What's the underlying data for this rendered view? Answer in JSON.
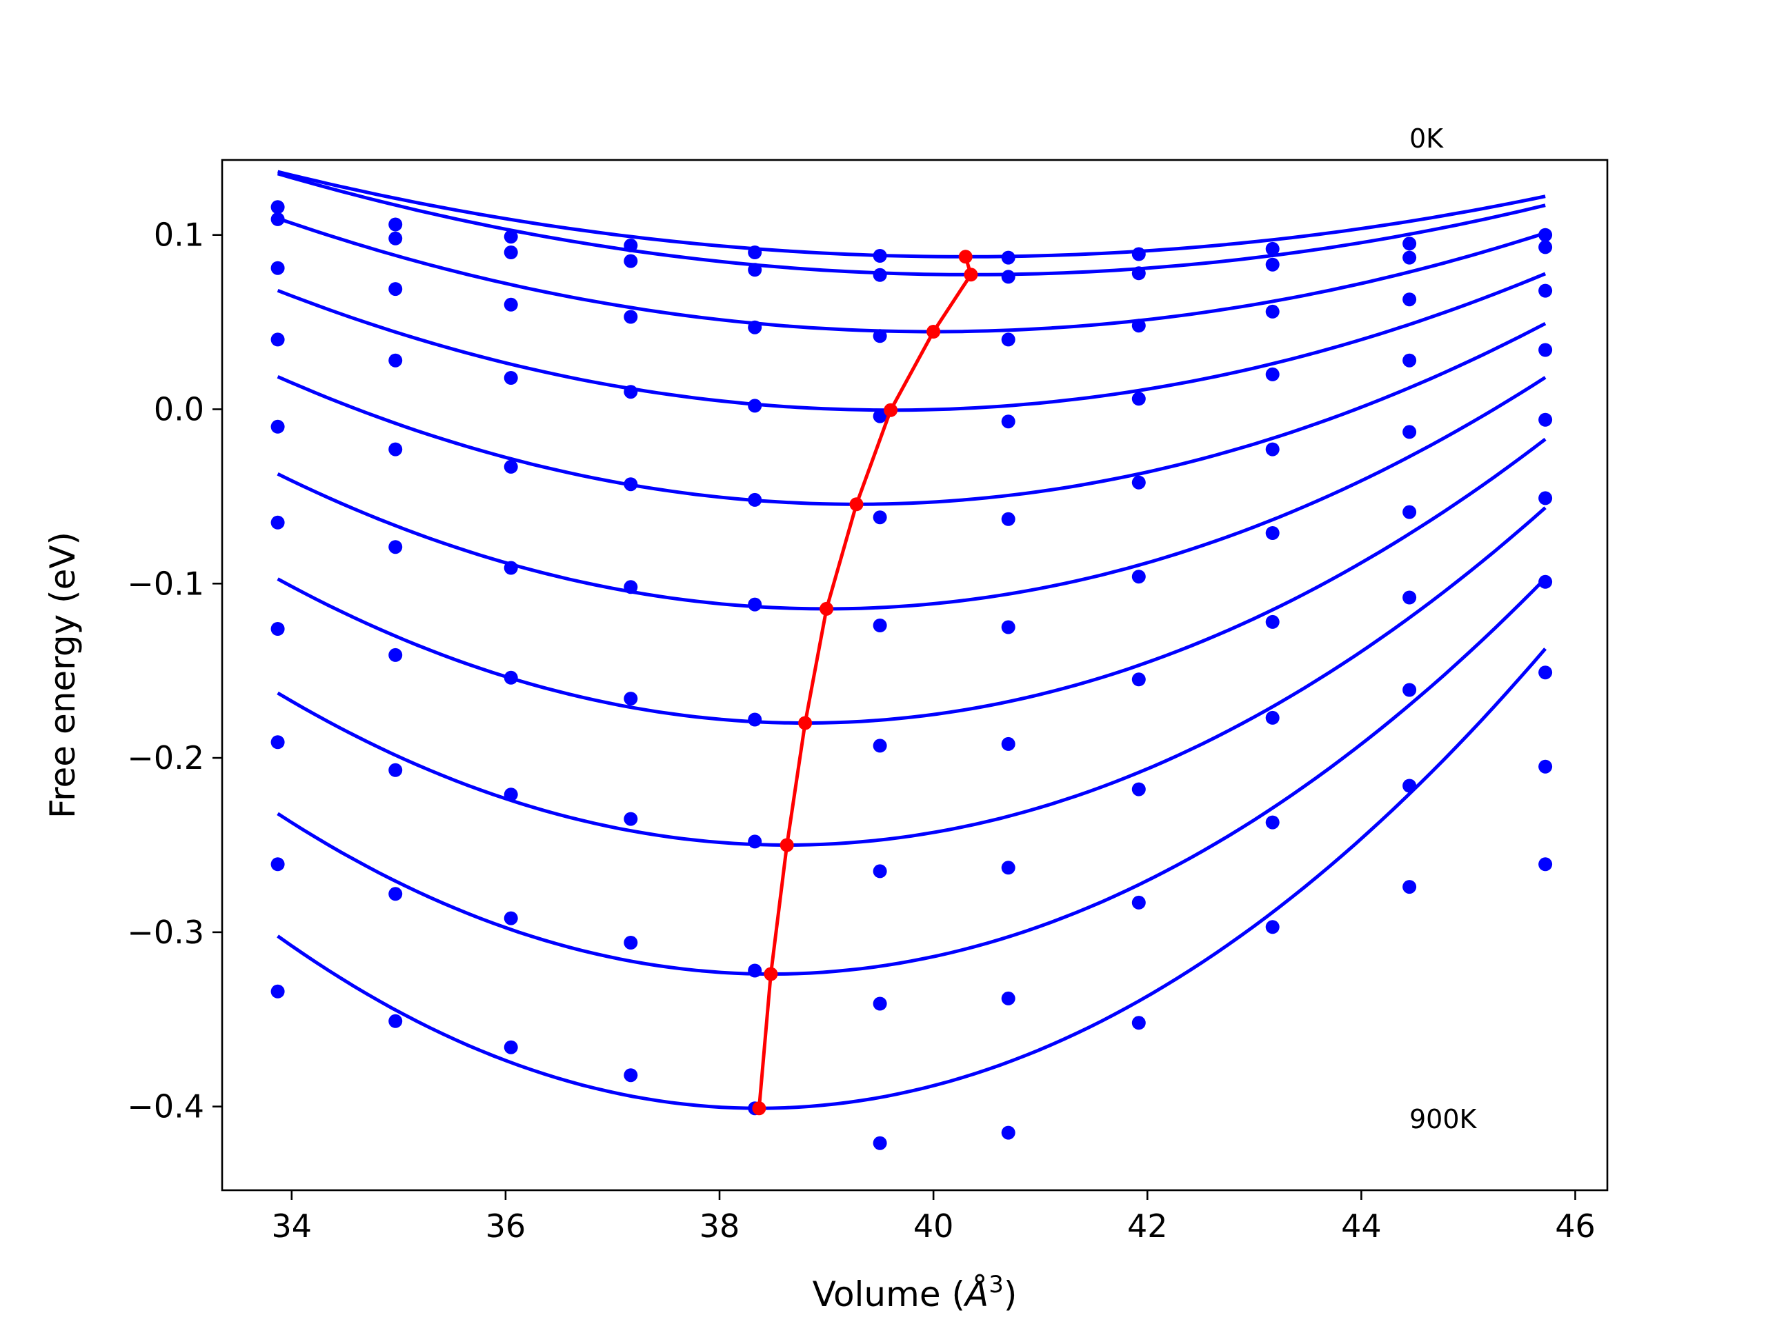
{
  "chart_data": {
    "type": "scatter",
    "xlabel": "Volume",
    "xlabel_unit_symbol": "Å",
    "xlabel_unit_exponent": "3",
    "ylabel": "Free energy (eV)",
    "xlim": [
      33.35,
      46.3
    ],
    "ylim": [
      -0.448,
      0.143
    ],
    "x_ticks": [
      34,
      36,
      38,
      40,
      42,
      44,
      46
    ],
    "x_tick_labels": [
      "34",
      "36",
      "38",
      "40",
      "42",
      "44",
      "46"
    ],
    "y_ticks": [
      0.1,
      0.0,
      -0.1,
      -0.2,
      -0.3,
      -0.4
    ],
    "y_tick_labels": [
      "0.1",
      "0.0",
      "−0.1",
      "−0.2",
      "−0.3",
      "−0.4"
    ],
    "grid": false,
    "legend": "none",
    "annotations": [
      {
        "text": "0K",
        "x": 44.45,
        "y": 0.155
      },
      {
        "text": "900K",
        "x": 44.45,
        "y": -0.415
      }
    ],
    "colors": {
      "data": "#0000ff",
      "minimum_path": "#ff0000",
      "axes": "#000000"
    },
    "x": [
      33.87,
      34.97,
      36.05,
      37.17,
      38.33,
      39.5,
      40.7,
      41.92,
      43.17,
      44.45,
      45.72
    ],
    "series": [
      {
        "points": [
          0.116,
          0.106,
          0.099,
          0.094,
          0.09,
          0.088,
          0.087,
          0.089,
          0.092,
          0.095,
          0.1
        ],
        "fit": {
          "a": 0.00118,
          "vmin": 40.3,
          "fmin": 0.0875
        }
      },
      {
        "points": [
          0.109,
          0.098,
          0.09,
          0.085,
          0.08,
          0.077,
          0.076,
          0.078,
          0.083,
          0.087,
          0.093
        ],
        "fit": {
          "a": 0.00138,
          "vmin": 40.35,
          "fmin": 0.0772
        }
      },
      {
        "points": [
          0.081,
          0.069,
          0.06,
          0.053,
          0.047,
          0.042,
          0.04,
          0.048,
          0.056,
          0.063,
          0.068
        ],
        "fit": {
          "a": 0.00173,
          "vmin": 40.0,
          "fmin": 0.0445
        }
      },
      {
        "points": [
          0.04,
          0.028,
          0.018,
          0.01,
          0.002,
          -0.004,
          -0.007,
          0.006,
          0.02,
          0.028,
          0.034
        ],
        "fit": {
          "a": 0.00209,
          "vmin": 39.6,
          "fmin": -0.0005
        }
      },
      {
        "points": [
          -0.01,
          -0.023,
          -0.033,
          -0.043,
          -0.052,
          -0.062,
          -0.063,
          -0.042,
          -0.023,
          -0.013,
          -0.006
        ],
        "fit": {
          "a": 0.0025,
          "vmin": 39.28,
          "fmin": -0.0545
        }
      },
      {
        "points": [
          -0.065,
          -0.079,
          -0.091,
          -0.102,
          -0.112,
          -0.124,
          -0.125,
          -0.096,
          -0.071,
          -0.059,
          -0.051
        ],
        "fit": {
          "a": 0.00294,
          "vmin": 39.0,
          "fmin": -0.1145
        }
      },
      {
        "points": [
          -0.126,
          -0.141,
          -0.154,
          -0.166,
          -0.178,
          -0.193,
          -0.192,
          -0.155,
          -0.122,
          -0.108,
          -0.099
        ],
        "fit": {
          "a": 0.0034,
          "vmin": 38.8,
          "fmin": -0.18
        }
      },
      {
        "points": [
          -0.191,
          -0.207,
          -0.221,
          -0.235,
          -0.248,
          -0.265,
          -0.263,
          -0.218,
          -0.177,
          -0.161,
          -0.151
        ],
        "fit": {
          "a": 0.00385,
          "vmin": 38.63,
          "fmin": -0.25
        }
      },
      {
        "points": [
          -0.261,
          -0.278,
          -0.292,
          -0.306,
          -0.322,
          -0.341,
          -0.338,
          -0.283,
          -0.237,
          -0.216,
          -0.205
        ],
        "fit": {
          "a": 0.00433,
          "vmin": 38.48,
          "fmin": -0.324
        }
      },
      {
        "points": [
          -0.334,
          -0.351,
          -0.366,
          -0.382,
          -0.401,
          -0.421,
          -0.415,
          -0.352,
          -0.297,
          -0.274,
          -0.261
        ],
        "fit": {
          "a": 0.00488,
          "vmin": 38.37,
          "fmin": -0.401
        }
      }
    ],
    "minimum_path": {
      "x": [
        40.3,
        40.35,
        40.0,
        39.6,
        39.28,
        39.0,
        38.8,
        38.63,
        38.48,
        38.37
      ],
      "y": [
        0.0875,
        0.0772,
        0.0445,
        -0.0005,
        -0.0545,
        -0.1145,
        -0.18,
        -0.25,
        -0.324,
        -0.401
      ]
    }
  }
}
